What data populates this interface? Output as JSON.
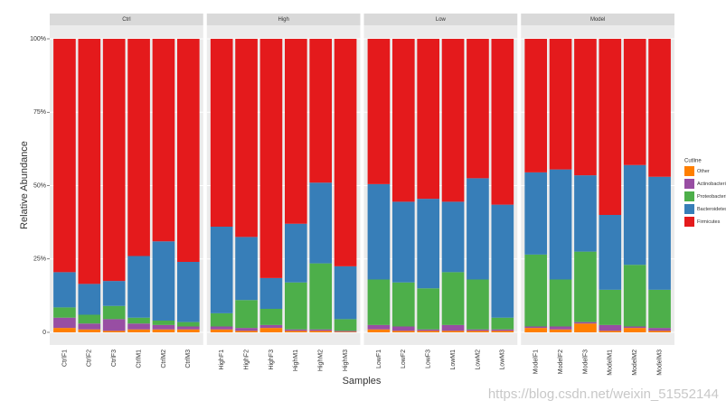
{
  "chart_data": {
    "type": "bar",
    "stacked": true,
    "ylabel": "Relative Abundance",
    "xlabel": "Samples",
    "legend_title": "Cutline",
    "facets": [
      "Ctrl",
      "High",
      "Low",
      "Model"
    ],
    "categories": [
      "CtrlF1",
      "CtrlF2",
      "CtrlF3",
      "CtrlM1",
      "CtrlM2",
      "CtrlM3",
      "HighF1",
      "HighF2",
      "HighF3",
      "HighM1",
      "HighM2",
      "HighM3",
      "LowF1",
      "LowF2",
      "LowF3",
      "LowM1",
      "LowM2",
      "LowM3",
      "ModelF1",
      "ModelF2",
      "ModelF3",
      "ModelM1",
      "ModelM2",
      "ModelM3"
    ],
    "series": [
      {
        "name": "Other",
        "color": "#ff7f00",
        "values": [
          1.5,
          1,
          0.5,
          1,
          1,
          1,
          1,
          0.5,
          1.5,
          0.5,
          0.5,
          0.2,
          1,
          0.5,
          0.5,
          0.5,
          0.5,
          0.5,
          1.5,
          1,
          3,
          0.5,
          1.5,
          0.5
        ]
      },
      {
        "name": "Actinobacteria",
        "color": "#984ea3",
        "values": [
          3.5,
          2,
          4,
          2,
          1.5,
          1,
          1,
          1,
          1,
          0.5,
          0.5,
          0.3,
          1.5,
          1.5,
          0.5,
          2,
          0.5,
          0.5,
          0.5,
          1,
          0.5,
          2,
          0.5,
          1
        ]
      },
      {
        "name": "Proteobacteria",
        "color": "#4daf4a",
        "values": [
          3.5,
          3,
          4.5,
          2,
          1.5,
          1.5,
          4.5,
          9.5,
          5.5,
          16,
          22.5,
          4,
          15.5,
          15,
          14,
          18,
          17,
          4,
          24.5,
          16,
          24,
          12,
          21,
          13
        ]
      },
      {
        "name": "Bacteroidetes",
        "color": "#377eb8",
        "values": [
          12,
          10.5,
          8.5,
          21,
          27,
          20.5,
          29.5,
          21.5,
          10.5,
          20,
          27.5,
          18,
          32.5,
          27.5,
          30.5,
          24,
          34.5,
          38.5,
          28,
          37.5,
          26,
          25.5,
          34,
          38.5
        ]
      },
      {
        "name": "Firmicutes",
        "color": "#e41a1c",
        "values": [
          79.5,
          83.5,
          82.5,
          74,
          69,
          76,
          64,
          67.5,
          81.5,
          63,
          49,
          77.5,
          49.5,
          55.5,
          54.5,
          55.5,
          47.5,
          56.5,
          45.5,
          44.5,
          46.5,
          60,
          43,
          47
        ]
      }
    ],
    "ylim": [
      0,
      100
    ],
    "yticks": [
      0,
      {
        "value": 25,
        "label": "25%"
      },
      {
        "value": 50,
        "label": "50%"
      },
      {
        "value": 75,
        "label": "75%"
      },
      {
        "value": 100,
        "label": "100%"
      }
    ],
    "grid": true,
    "legend": "right",
    "watermark": "https://blog.csdn.net/weixin_51552144"
  }
}
